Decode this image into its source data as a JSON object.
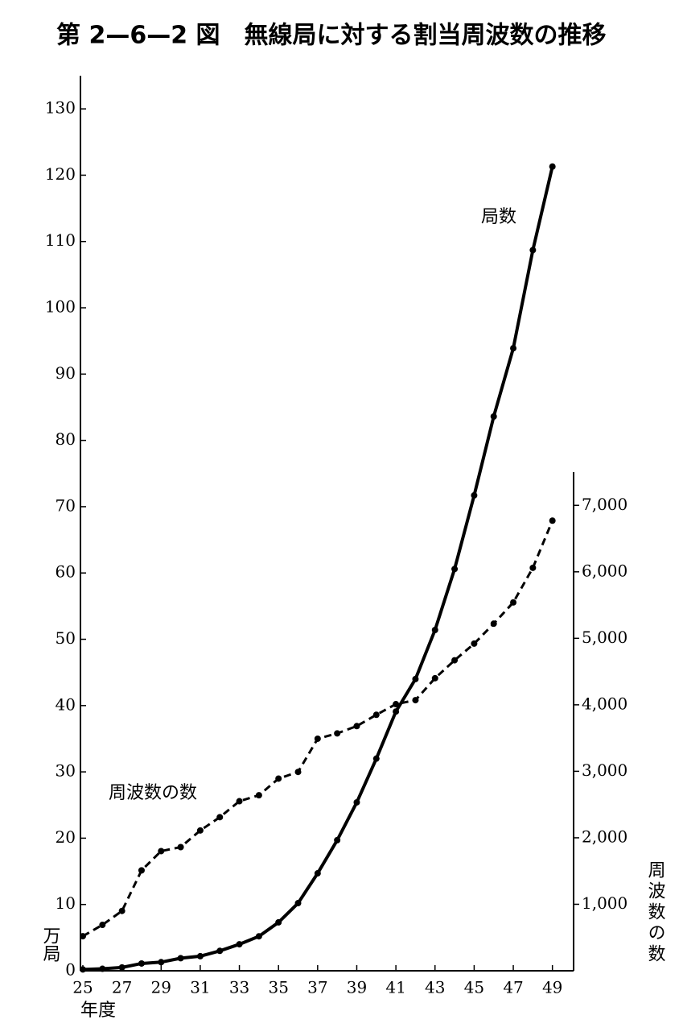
{
  "chart_data": {
    "type": "line",
    "title": "第 2—6—2 図　無線局に対する割当周波数の推移",
    "x_label": "年度",
    "y_label": "万局",
    "y2_label": "周波数の数",
    "x": [
      25,
      26,
      27,
      28,
      29,
      30,
      31,
      32,
      33,
      34,
      35,
      36,
      37,
      38,
      39,
      40,
      41,
      42,
      43,
      44,
      45,
      46,
      47,
      48,
      49
    ],
    "xlim": [
      25,
      50
    ],
    "xticks": [
      25,
      27,
      29,
      31,
      33,
      35,
      37,
      39,
      41,
      43,
      45,
      47,
      49
    ],
    "ylim": [
      0,
      135
    ],
    "yticks": [
      0,
      10,
      20,
      30,
      40,
      50,
      60,
      70,
      80,
      90,
      100,
      110,
      120,
      130
    ],
    "y2lim": [
      0,
      7500
    ],
    "y2ticks": [
      {
        "value": 1000,
        "label": "1,000"
      },
      {
        "value": 2000,
        "label": "2,000"
      },
      {
        "value": 3000,
        "label": "3,000"
      },
      {
        "value": 4000,
        "label": "4,000"
      },
      {
        "value": 5000,
        "label": "5,000"
      },
      {
        "value": 6000,
        "label": "6,000"
      },
      {
        "value": 7000,
        "label": "7,000"
      }
    ],
    "series": [
      {
        "name": "局数",
        "color": "#000000",
        "line_style": "solid",
        "values": [
          0.2,
          0.3,
          0.5,
          1.1,
          1.3,
          1.9,
          2.2,
          3.0,
          4.0,
          5.2,
          7.3,
          10.2,
          14.7,
          19.7,
          25.4,
          32.0,
          39.1,
          44.0,
          51.4,
          60.6,
          71.7,
          83.6,
          93.9,
          108.7,
          121.3
        ]
      },
      {
        "name": "周波数の数",
        "color": "#000000",
        "line_style": "dashed",
        "axis": "y2",
        "values": [
          520,
          690,
          900,
          1510,
          1800,
          1860,
          2110,
          2310,
          2550,
          2640,
          2890,
          2990,
          3490,
          3570,
          3680,
          3850,
          4010,
          4070,
          4400,
          4670,
          4920,
          5220,
          5540,
          6060,
          6770
        ]
      }
    ]
  }
}
